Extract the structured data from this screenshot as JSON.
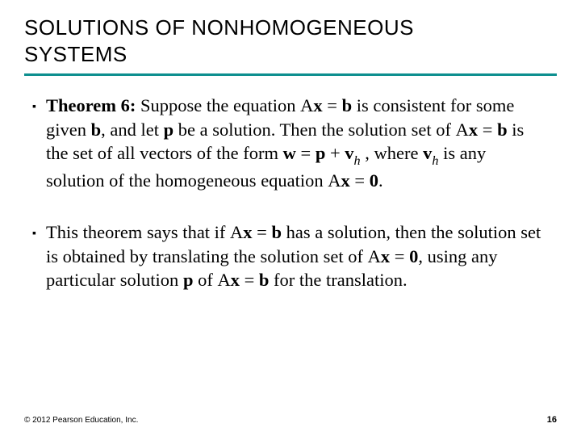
{
  "colors": {
    "accent": "#0d8f8f",
    "text": "#000000",
    "background": "#ffffff"
  },
  "title": {
    "line1": "SOLUTIONS OF NONHOMOGENEOUS",
    "line2": "SYSTEMS"
  },
  "bullets": [
    {
      "theorem_label": "Theorem 6:",
      "part1": " Suppose the equation ",
      "eq1": "A<b>x</b> = <b>b</b>",
      "part2": " is consistent for some given ",
      "bold_b": "b",
      "part3": ", and let ",
      "bold_p": "p",
      "part4": " be a solution. Then the solution set of ",
      "eq2": "A<b>x</b> = <b>b</b>",
      "part5": " is the set of all vectors of the form ",
      "eq3": "<b>w</b> = <b>p</b> + <b>v</b>",
      "sub_h": "h",
      "part6": " , where ",
      "bold_v": "v",
      "sub_h2": "h",
      "part7": " is any solution of the homogeneous equation ",
      "eq4": "A<b>x</b> = <b>0</b>",
      "part8": "."
    },
    {
      "part1": "This theorem says that if ",
      "eq1": "A<b>x</b> = <b>b</b>",
      "part2": " has a solution, then the solution set is obtained by translating the solution set of ",
      "eq2": "A<b>x</b> = <b>0</b>",
      "part3": ", using any particular solution ",
      "bold_p": "p",
      "part4": " of ",
      "eq3": "A<b>x</b> = <b>b</b>",
      "part5": " for the translation."
    }
  ],
  "footer": {
    "copyright": "© 2012 Pearson Education, Inc.",
    "page": "16"
  }
}
